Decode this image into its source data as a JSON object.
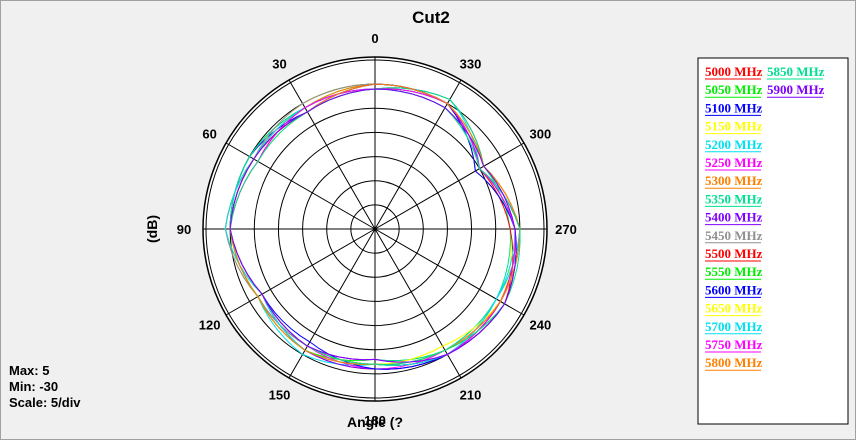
{
  "chart_data": {
    "type": "polar",
    "title": "Cut2",
    "xlabel": "Angle  (?",
    "ylabel": "(dB)",
    "info": {
      "max": "Max: 5",
      "min": "Min: -30",
      "scale": "Scale: 5/div"
    },
    "r_range": [
      -30,
      5
    ],
    "r_step": 5,
    "angle_labels": [
      "0",
      "30",
      "60",
      "90",
      "120",
      "150",
      "180",
      "210",
      "240",
      "270",
      "300",
      "330"
    ],
    "angles_deg": [
      0,
      30,
      60,
      90,
      120,
      150,
      180,
      210,
      240,
      270,
      300,
      330
    ],
    "series": [
      {
        "name": "5000 MHz",
        "color": "#ff0000",
        "values_db": [
          -1,
          -1,
          -1,
          1,
          -3,
          -1,
          -1,
          0,
          0,
          0,
          -4,
          1
        ]
      },
      {
        "name": "5050 MHz",
        "color": "#00ee00",
        "values_db": [
          0,
          -1,
          0,
          0,
          -3,
          -1,
          -3,
          -1,
          1,
          -1,
          -5,
          0
        ]
      },
      {
        "name": "5100 MHz",
        "color": "#0000ff",
        "values_db": [
          -1,
          -2,
          0,
          0,
          -2,
          -2,
          -2,
          0,
          -1,
          0,
          -4,
          -1
        ]
      },
      {
        "name": "5150 MHz",
        "color": "#ffff00",
        "values_db": [
          0,
          0,
          -1,
          1,
          -3,
          -1,
          -2,
          -2,
          0,
          -2,
          -4,
          0
        ]
      },
      {
        "name": "5200 MHz",
        "color": "#00e0f0",
        "values_db": [
          -1,
          -1,
          0,
          0,
          -2,
          0,
          -2,
          -1,
          -1,
          0,
          -5,
          1
        ]
      },
      {
        "name": "5250 MHz",
        "color": "#ff00ff",
        "values_db": [
          0,
          -2,
          -1,
          0,
          -3,
          -2,
          -1,
          -1,
          0,
          0,
          -5,
          0
        ]
      },
      {
        "name": "5300 MHz",
        "color": "#ff8000",
        "values_db": [
          0,
          -1,
          -1,
          1,
          -2,
          -1,
          -2,
          -1,
          0,
          -1,
          -6,
          0
        ]
      },
      {
        "name": "5350 MHz",
        "color": "#00e090",
        "values_db": [
          -1,
          -1,
          0,
          0,
          -2,
          -2,
          -3,
          -1,
          -1,
          -2,
          -4,
          1
        ]
      },
      {
        "name": "5400 MHz",
        "color": "#8000ff",
        "values_db": [
          -1,
          -2,
          -1,
          0,
          -3,
          -1,
          -1,
          0,
          0,
          0,
          -5,
          0
        ]
      },
      {
        "name": "5450 MHz",
        "color": "#909090",
        "values_db": [
          0,
          0,
          -1,
          1,
          -2,
          -2,
          -3,
          0,
          1,
          -1,
          -6,
          0
        ]
      },
      {
        "name": "5500 MHz",
        "color": "#ff0000",
        "values_db": [
          -1,
          -1,
          -2,
          0,
          -3,
          -2,
          -2,
          0,
          1,
          -2,
          -5,
          -1
        ]
      },
      {
        "name": "5550 MHz",
        "color": "#00ee00",
        "values_db": [
          -1,
          -2,
          -1,
          0,
          -2,
          -1,
          -2,
          0,
          0,
          -1,
          -4,
          0
        ]
      },
      {
        "name": "5600 MHz",
        "color": "#0000ff",
        "values_db": [
          0,
          -2,
          -1,
          0,
          -3,
          -3,
          -1,
          0,
          1,
          -1,
          -6,
          0
        ]
      },
      {
        "name": "5650 MHz",
        "color": "#ffff00",
        "values_db": [
          -1,
          -2,
          -2,
          0,
          -3,
          -2,
          -2,
          -2,
          0,
          0,
          -4,
          -1
        ]
      },
      {
        "name": "5700 MHz",
        "color": "#00e0f0",
        "values_db": [
          -1,
          -1,
          -1,
          1,
          -3,
          -1,
          -2,
          0,
          -1,
          -1,
          -5,
          -1
        ]
      },
      {
        "name": "5750 MHz",
        "color": "#ff00ff",
        "values_db": [
          -1,
          -1,
          -2,
          0,
          -3,
          -2,
          -3,
          0,
          0,
          -1,
          -5,
          0
        ]
      },
      {
        "name": "5800 MHz",
        "color": "#ff8000",
        "values_db": [
          0,
          -2,
          -1,
          0,
          -2,
          -1,
          -2,
          -1,
          0,
          0,
          -4,
          0
        ]
      },
      {
        "name": "5850 MHz",
        "color": "#00e090",
        "values_db": [
          -1,
          -2,
          -2,
          0,
          -3,
          -2,
          -2,
          -1,
          1,
          0,
          -5,
          -1
        ]
      },
      {
        "name": "5900 MHz",
        "color": "#8000ff",
        "values_db": [
          -1,
          -2,
          -1,
          0,
          -3,
          -2,
          -3,
          0,
          1,
          -1,
          -4,
          -1
        ]
      }
    ],
    "grid": true,
    "legend_position": "right"
  }
}
